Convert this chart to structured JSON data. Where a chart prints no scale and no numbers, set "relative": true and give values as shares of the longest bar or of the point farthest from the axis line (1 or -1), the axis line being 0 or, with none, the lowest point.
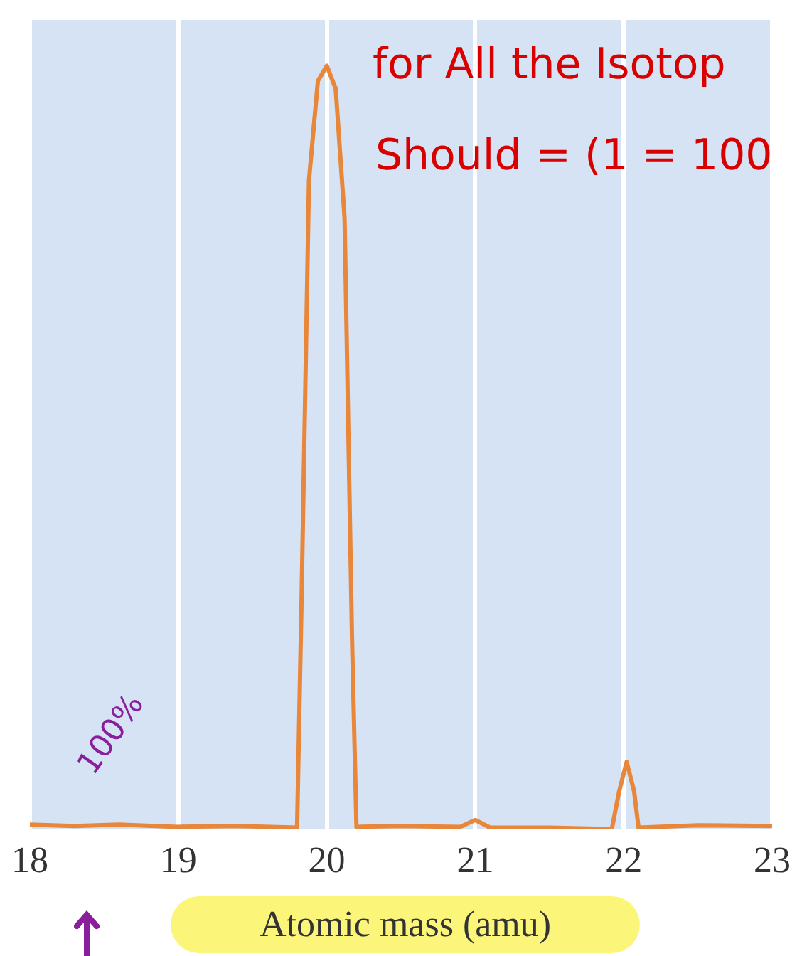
{
  "chart_data": {
    "type": "line",
    "relative": true,
    "xlabel": "Atomic mass (amu)",
    "x": [
      18,
      18.3,
      18.6,
      19,
      19.4,
      19.8,
      19.83,
      19.88,
      19.94,
      20.0,
      20.06,
      20.12,
      20.17,
      20.2,
      20.5,
      20.9,
      21.0,
      21.1,
      21.5,
      21.92,
      21.97,
      22.02,
      22.07,
      22.1,
      22.5,
      23
    ],
    "series": [
      {
        "color": "#e8863a",
        "values": [
          0.006,
          0.004,
          0.006,
          0.003,
          0.004,
          0.002,
          0.3,
          0.85,
          0.98,
          1,
          0.97,
          0.8,
          0.25,
          0.003,
          0.004,
          0.003,
          0.012,
          0.002,
          0.002,
          0,
          0.05,
          0.088,
          0.05,
          0.002,
          0.005,
          0.004
        ]
      }
    ],
    "xlim": [
      18,
      23
    ],
    "xticks": [
      18,
      19,
      20,
      21,
      22,
      23
    ],
    "grid": "x",
    "legend": false,
    "marker": "none",
    "line_style": "solid",
    "annotations": [
      "for All the Isotop",
      "Should = (1 = 100",
      "100%"
    ]
  }
}
